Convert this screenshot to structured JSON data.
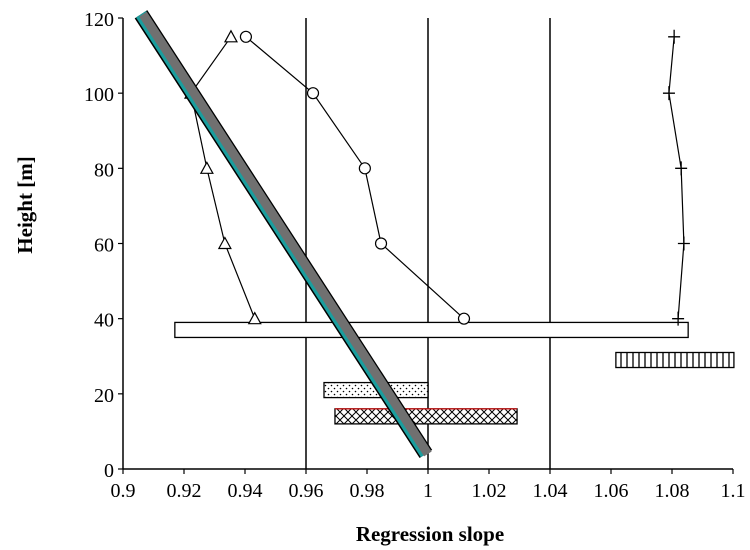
{
  "chart_data": {
    "type": "scatter",
    "title": "",
    "xlabel": "Regression slope",
    "ylabel": "Height [m]",
    "xlim": [
      0.9,
      1.1
    ],
    "ylim": [
      0,
      120
    ],
    "x_ticks": [
      0.9,
      0.92,
      0.94,
      0.96,
      0.98,
      1.0,
      1.02,
      1.04,
      1.06,
      1.08,
      1.1
    ],
    "x_tick_labels": [
      "0.9",
      "0.92",
      "0.94",
      "0.96",
      "0.98",
      "1",
      "1.02",
      "1.04",
      "1.06",
      "1.08",
      "1.1"
    ],
    "y_ticks": [
      0,
      20,
      40,
      60,
      80,
      100,
      120
    ],
    "y_tick_labels": [
      "0",
      "20",
      "40",
      "60",
      "80",
      "100",
      "120"
    ],
    "vertical_gridlines": [
      0.96,
      1.0,
      1.04
    ],
    "series": [
      {
        "marker": "triangle",
        "points": [
          {
            "x": 0.9432,
            "y": 40
          },
          {
            "x": 0.9334,
            "y": 60
          },
          {
            "x": 0.9275,
            "y": 80
          },
          {
            "x": 0.9223,
            "y": 100
          },
          {
            "x": 0.9354,
            "y": 115
          }
        ]
      },
      {
        "marker": "circle",
        "points": [
          {
            "x": 1.0118,
            "y": 40
          },
          {
            "x": 0.9846,
            "y": 60
          },
          {
            "x": 0.9793,
            "y": 80
          },
          {
            "x": 0.9623,
            "y": 100
          },
          {
            "x": 0.9403,
            "y": 115
          }
        ]
      },
      {
        "marker": "plus",
        "points": [
          {
            "x": 1.082,
            "y": 40
          },
          {
            "x": 1.0839,
            "y": 60
          },
          {
            "x": 1.083,
            "y": 80
          },
          {
            "x": 1.079,
            "y": 100
          },
          {
            "x": 1.0807,
            "y": 115
          }
        ]
      }
    ],
    "diagonal_band": {
      "from": {
        "x": 0.9059,
        "y": 121
      },
      "to": {
        "x": 0.9993,
        "y": 4
      }
    },
    "bars": [
      {
        "pattern": "white",
        "x_start": 0.917,
        "x_end": 1.0853,
        "y_low": 35,
        "y_high": 39
      },
      {
        "pattern": "vertical-hatch",
        "x_start": 1.0616,
        "x_end": 1.1003,
        "y_low": 27,
        "y_high": 31
      },
      {
        "pattern": "dotted",
        "x_start": 0.9659,
        "x_end": 1.0,
        "y_low": 19,
        "y_high": 23
      },
      {
        "pattern": "crosshatch",
        "x_start": 0.9695,
        "x_end": 1.0292,
        "y_low": 12,
        "y_high": 16
      }
    ],
    "colors": {
      "band_fill": "#707070",
      "band_edge": "#1a9e9e",
      "bar_top_accent": "#d01010"
    }
  }
}
